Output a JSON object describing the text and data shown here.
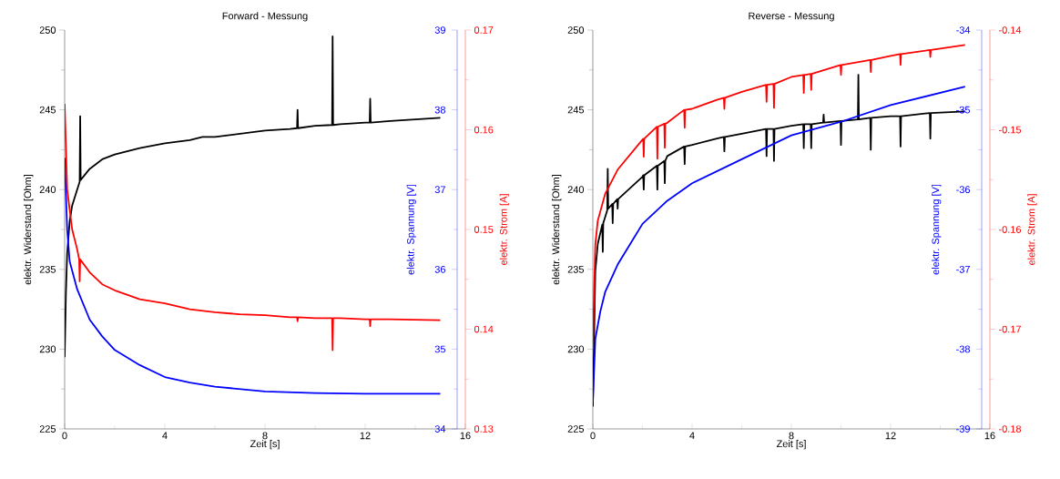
{
  "chart_data": [
    {
      "type": "line",
      "title": "Forward - Messung",
      "xlabel": "Zeit [s]",
      "ylabel": "elektr. Widerstand [Ohm]",
      "y2label": "elektr. Spannung [V]",
      "y3label": "elektr. Strom [A]",
      "xlim": [
        0,
        16
      ],
      "xticks": [
        0,
        {
          "value": 2,
          "label": null
        },
        4,
        {
          "value": 6,
          "label": null
        },
        8,
        {
          "value": 10,
          "label": null
        },
        12,
        {
          "value": 14,
          "label": null
        },
        16
      ],
      "ylim": [
        225,
        250
      ],
      "yticks": [
        225,
        {
          "value": 227.5,
          "label": null
        },
        230,
        {
          "value": 232.5,
          "label": null
        },
        235,
        {
          "value": 237.5,
          "label": null
        },
        240,
        {
          "value": 242.5,
          "label": null
        },
        245,
        {
          "value": 247.5,
          "label": null
        },
        250
      ],
      "y2lim": [
        34,
        39
      ],
      "y2ticks": [
        34,
        {
          "value": 34.5,
          "label": null
        },
        35,
        {
          "value": 35.5,
          "label": null
        },
        36,
        {
          "value": 36.5,
          "label": null
        },
        37,
        {
          "value": 37.5,
          "label": null
        },
        38,
        {
          "value": 38.5,
          "label": null
        },
        39
      ],
      "y3lim": [
        0.13,
        0.17
      ],
      "y3ticks": [
        0.13,
        {
          "value": 0.135,
          "label": null
        },
        0.14,
        {
          "value": 0.145,
          "label": null
        },
        0.15,
        {
          "value": 0.155,
          "label": null
        },
        0.16,
        {
          "value": 0.165,
          "label": null
        },
        0.17
      ],
      "series": [
        {
          "color": "#000000",
          "axis": "y",
          "x": [
            0,
            0.05,
            0.1,
            0.2,
            0.3,
            0.5,
            0.6,
            0.62,
            0.64,
            1,
            1.5,
            2,
            3,
            4,
            5,
            5.5,
            6,
            7,
            8,
            9,
            9.28,
            9.3,
            9.32,
            10,
            10.68,
            10.7,
            10.72,
            11,
            12,
            12.18,
            12.2,
            12.22,
            13,
            14,
            15
          ],
          "values": [
            229.5,
            233.5,
            236,
            238,
            239,
            240,
            240.5,
            244.6,
            240.6,
            241.3,
            241.9,
            242.2,
            242.6,
            242.9,
            243.1,
            243.3,
            243.3,
            243.5,
            243.7,
            243.8,
            243.85,
            245.0,
            243.85,
            244.0,
            244.05,
            249.6,
            244.05,
            244.1,
            244.2,
            244.2,
            245.7,
            244.2,
            244.3,
            244.4,
            244.5
          ]
        },
        {
          "color": "#0000ff",
          "axis": "y2",
          "x": [
            0,
            0.1,
            0.2,
            0.5,
            1,
            1.5,
            2,
            3,
            4,
            5,
            6,
            8,
            10,
            12,
            15
          ],
          "values": [
            37.4,
            36.5,
            36.1,
            35.75,
            35.37,
            35.16,
            34.99,
            34.8,
            34.65,
            34.58,
            34.53,
            34.47,
            34.45,
            34.44,
            34.44
          ]
        },
        {
          "color": "#ff0000",
          "axis": "y3",
          "x": [
            0,
            0.1,
            0.2,
            0.3,
            0.5,
            0.58,
            0.6,
            0.62,
            1,
            1.5,
            2,
            3,
            4,
            5,
            6,
            7,
            8,
            9,
            9.28,
            9.3,
            9.32,
            10,
            10.68,
            10.7,
            10.72,
            11,
            12,
            12.18,
            12.2,
            12.22,
            13,
            15
          ],
          "values": [
            0.1626,
            0.154,
            0.152,
            0.15,
            0.148,
            0.147,
            0.1448,
            0.147,
            0.1457,
            0.1445,
            0.1439,
            0.143,
            0.1426,
            0.142,
            0.1417,
            0.1415,
            0.1414,
            0.1412,
            0.1412,
            0.1408,
            0.1412,
            0.1411,
            0.1411,
            0.1379,
            0.1411,
            0.1411,
            0.141,
            0.141,
            0.1403,
            0.141,
            0.141,
            0.1409
          ]
        }
      ]
    },
    {
      "type": "line",
      "title": "Reverse - Messung",
      "xlabel": "Zeit [s]",
      "ylabel": "elektr. Widerstand [Ohm]",
      "y2label": "elektr. Spannung [V]",
      "y3label": "elektr. Strom [A]",
      "xlim": [
        0,
        16
      ],
      "xticks": [
        0,
        {
          "value": 2,
          "label": null
        },
        4,
        {
          "value": 6,
          "label": null
        },
        8,
        {
          "value": 10,
          "label": null
        },
        12,
        {
          "value": 14,
          "label": null
        },
        16
      ],
      "ylim": [
        225,
        250
      ],
      "yticks": [
        225,
        {
          "value": 227.5,
          "label": null
        },
        230,
        {
          "value": 232.5,
          "label": null
        },
        235,
        {
          "value": 237.5,
          "label": null
        },
        240,
        {
          "value": 242.5,
          "label": null
        },
        245,
        {
          "value": 247.5,
          "label": null
        },
        250
      ],
      "y2lim": [
        -39,
        -34
      ],
      "y2ticks": [
        -39,
        {
          "value": -38.5,
          "label": null
        },
        -38,
        {
          "value": -37.5,
          "label": null
        },
        -37,
        {
          "value": -36.5,
          "label": null
        },
        -36,
        {
          "value": -35.5,
          "label": null
        },
        -35,
        {
          "value": -34.5,
          "label": null
        },
        -34
      ],
      "y3lim": [
        -0.18,
        -0.14
      ],
      "y3ticks": [
        -0.18,
        {
          "value": -0.175,
          "label": null
        },
        -0.17,
        {
          "value": -0.165,
          "label": null
        },
        -0.16,
        {
          "value": -0.155,
          "label": null
        },
        -0.15,
        {
          "value": -0.145,
          "label": null
        },
        -0.14
      ],
      "series": [
        {
          "color": "#000000",
          "axis": "y",
          "x": [
            0,
            0.1,
            0.2,
            0.38,
            0.4,
            0.42,
            0.5,
            0.58,
            0.6,
            0.62,
            0.78,
            0.8,
            0.82,
            0.98,
            1,
            1.02,
            2,
            2.03,
            2.05,
            2.07,
            2.58,
            2.6,
            2.62,
            2.88,
            2.9,
            2.92,
            3,
            3.68,
            3.7,
            3.72,
            4,
            5,
            5.28,
            5.3,
            5.32,
            6,
            6.98,
            7,
            7.02,
            7.28,
            7.3,
            7.32,
            8,
            8.48,
            8.5,
            8.52,
            8.78,
            8.8,
            8.82,
            9.28,
            9.3,
            9.32,
            9.98,
            10,
            10.02,
            10.68,
            10.7,
            10.72,
            11.18,
            11.2,
            11.22,
            12,
            12.38,
            12.4,
            12.42,
            13.58,
            13.6,
            13.62,
            15
          ],
          "values": [
            226.4,
            234.9,
            236.6,
            237.8,
            236.1,
            237.9,
            238.3,
            238.7,
            241.3,
            238.8,
            239.1,
            237.9,
            239.1,
            239.4,
            238.8,
            239.4,
            240.8,
            240.9,
            240.0,
            240.9,
            241.5,
            240.0,
            241.5,
            241.8,
            240.4,
            241.8,
            242.1,
            242.7,
            241.6,
            242.7,
            242.8,
            243.2,
            243.3,
            242.4,
            243.3,
            243.5,
            243.8,
            242.1,
            243.8,
            243.8,
            241.8,
            243.8,
            244.0,
            244.1,
            242.6,
            244.1,
            244.1,
            242.6,
            244.1,
            244.2,
            244.7,
            244.2,
            244.3,
            242.8,
            244.3,
            244.4,
            247.2,
            244.4,
            244.5,
            242.5,
            244.5,
            244.6,
            244.6,
            242.7,
            244.6,
            244.8,
            243.2,
            244.8,
            244.9
          ]
        },
        {
          "color": "#0000ff",
          "axis": "y2",
          "x": [
            0,
            0.1,
            0.3,
            0.5,
            1,
            2,
            3,
            4,
            6,
            8,
            10,
            12,
            15
          ],
          "values": [
            -38.66,
            -37.87,
            -37.53,
            -37.28,
            -36.94,
            -36.43,
            -36.14,
            -35.92,
            -35.62,
            -35.32,
            -35.15,
            -34.94,
            -34.71
          ]
        },
        {
          "color": "#ff0000",
          "axis": "y3",
          "x": [
            0,
            0.05,
            0.1,
            0.2,
            0.5,
            1,
            2,
            2.03,
            2.05,
            2.07,
            2.58,
            2.6,
            2.62,
            2.88,
            2.9,
            2.92,
            3,
            3.68,
            3.7,
            3.72,
            4,
            5,
            5.28,
            5.3,
            5.32,
            6,
            6.98,
            7,
            7.02,
            7.28,
            7.3,
            7.32,
            8,
            8.48,
            8.5,
            8.52,
            8.78,
            8.8,
            8.82,
            9.98,
            10,
            10.02,
            11.18,
            11.2,
            11.22,
            12,
            12.38,
            12.4,
            12.42,
            13.58,
            13.6,
            13.62,
            15
          ],
          "values": [
            -0.172,
            -0.166,
            -0.1615,
            -0.1591,
            -0.1564,
            -0.154,
            -0.151,
            -0.1509,
            -0.1527,
            -0.1509,
            -0.1497,
            -0.1529,
            -0.1497,
            -0.1494,
            -0.1518,
            -0.1494,
            -0.1493,
            -0.148,
            -0.1498,
            -0.148,
            -0.1479,
            -0.147,
            -0.1468,
            -0.1479,
            -0.1468,
            -0.1462,
            -0.1455,
            -0.1472,
            -0.1455,
            -0.1454,
            -0.1478,
            -0.1454,
            -0.1447,
            -0.1445,
            -0.1463,
            -0.1445,
            -0.1444,
            -0.146,
            -0.1444,
            -0.1435,
            -0.1445,
            -0.1435,
            -0.143,
            -0.1442,
            -0.143,
            -0.1426,
            -0.1424,
            -0.1435,
            -0.1424,
            -0.142,
            -0.1427,
            -0.142,
            -0.1415
          ]
        }
      ]
    }
  ]
}
